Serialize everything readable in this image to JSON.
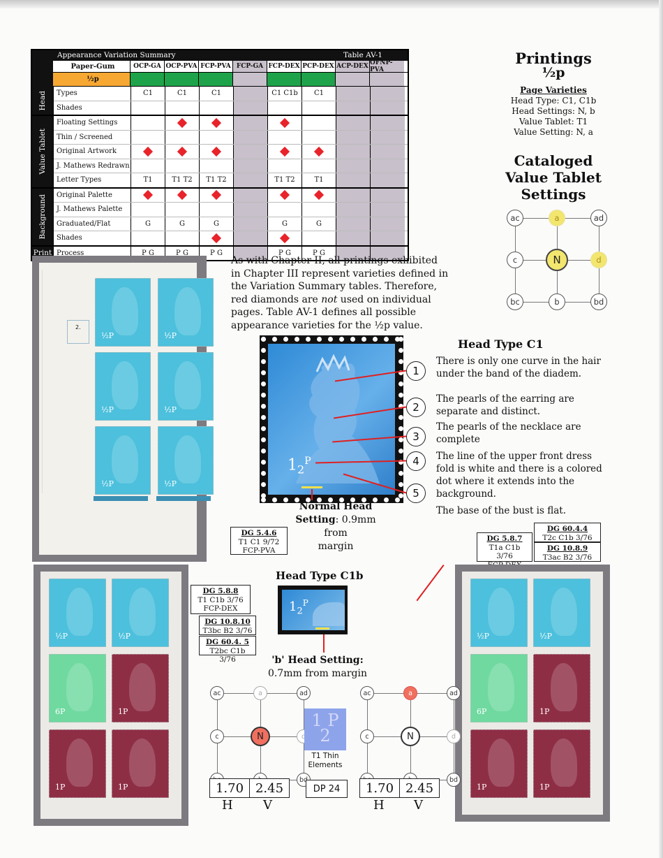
{
  "summary_table": {
    "title": "Appearance Variation Summary",
    "table_id": "Table AV-1",
    "paper_gum_label": "Paper-Gum",
    "columns": [
      "OCP-GA",
      "OCP-PVA",
      "FCP-PVA",
      "FCP-GA",
      "FCP-DEX",
      "PCP-DEX",
      "ACP-DEX",
      "OFNP-PVA"
    ],
    "value_label": "½p",
    "groups": [
      {
        "name": "Head",
        "rows": [
          {
            "label": "Types",
            "cells": [
              "C1",
              "C1",
              "C1",
              "",
              "C1 C1b",
              "C1",
              "",
              ""
            ]
          },
          {
            "label": "Shades",
            "cells": [
              "",
              "",
              "",
              "",
              "",
              "",
              "",
              ""
            ]
          }
        ]
      },
      {
        "name": "Value Tablet",
        "rows": [
          {
            "label": "Floating Settings",
            "cells": [
              "",
              "◆",
              "◆",
              "",
              "◆",
              "",
              "",
              ""
            ]
          },
          {
            "label": "Thin / Screened",
            "cells": [
              "",
              "",
              "",
              "",
              "",
              "",
              "",
              ""
            ]
          },
          {
            "label": "Original Artwork",
            "cells": [
              "◆",
              "◆",
              "◆",
              "",
              "◆",
              "◆",
              "",
              ""
            ]
          },
          {
            "label": "J. Mathews Redrawn",
            "cells": [
              "",
              "",
              "",
              "",
              "",
              "",
              "",
              ""
            ]
          },
          {
            "label": "Letter Types",
            "cells": [
              "T1",
              "T1 T2",
              "T1 T2",
              "",
              "T1 T2",
              "T1",
              "",
              ""
            ]
          }
        ]
      },
      {
        "name": "Background",
        "rows": [
          {
            "label": "Original Palette",
            "cells": [
              "◆",
              "◆",
              "◆",
              "",
              "◆",
              "◆",
              "",
              ""
            ]
          },
          {
            "label": "J. Mathews Palette",
            "cells": [
              "",
              "",
              "",
              "",
              "",
              "",
              "",
              ""
            ]
          },
          {
            "label": "Graduated/Flat",
            "cells": [
              "G",
              "G",
              "G",
              "",
              "G",
              "G",
              "",
              ""
            ]
          },
          {
            "label": "Shades",
            "cells": [
              "",
              "",
              "◆",
              "",
              "◆",
              "",
              "",
              ""
            ]
          }
        ]
      },
      {
        "name": "Print",
        "rows": [
          {
            "label": "Process",
            "cells": [
              "P G",
              "P G",
              "P G",
              "",
              "P G",
              "P G",
              "",
              ""
            ]
          }
        ]
      }
    ],
    "grey_columns": [
      3,
      6,
      7
    ],
    "green_columns": [
      0,
      1,
      2,
      4,
      5
    ]
  },
  "printings": {
    "title": "Printings",
    "value": "½p",
    "page_varieties_label": "Page Varieties",
    "lines": [
      "Head Type: C1, C1b",
      "Head Settings: N, b",
      "Value Tablet: T1",
      "Value Setting: N, a"
    ]
  },
  "cataloged": {
    "title_lines": [
      "Cataloged",
      "Value Tablet",
      "Settings"
    ],
    "nodes": {
      "ac": "ac",
      "a": "a",
      "ad": "ad",
      "c": "c",
      "N": "N",
      "d": "d",
      "bc": "bc",
      "b": "b",
      "bd": "bd"
    }
  },
  "intro_paragraph": {
    "part1": "As with Chapter II, all printings exhibited in Chapter III represent varieties defined in the Variation Summary tables. Therefore, red diamonds are ",
    "emph": "not",
    "part2": " used on individual pages. Table AV-1 defines all possible appearance varieties for the ½p value."
  },
  "block1": {
    "cylinder_number": "2.",
    "value_text": "½P"
  },
  "head_type_c1": {
    "title": "Head Type C1",
    "points": [
      {
        "n": "1",
        "text": "There is only one curve in the hair under the band of the diadem."
      },
      {
        "n": "2",
        "text": "The pearls of the earring are separate and distinct."
      },
      {
        "n": "3",
        "text": "The pearls of the necklace are complete"
      },
      {
        "n": "4",
        "text": "The line of the upper front dress fold is white and there is a colored dot where it extends into the background."
      },
      {
        "n": "5",
        "text": "The base of the bust is flat."
      }
    ]
  },
  "normal_head": {
    "bold": "Normal Head",
    "line2_bold": "Setting",
    "line2_rest": ": 0.9mm from",
    "line3": "margin"
  },
  "dg_boxes": {
    "dg546": {
      "id": "DG 5.4.6",
      "l1": "T1  C1  9/72",
      "l2": "FCP-PVA"
    },
    "dg588": {
      "id": "DG 5.8.8",
      "l1": "T1 C1b  3/76",
      "l2": "FCP-DEX"
    },
    "dg10810": {
      "id": "DG 10.8.10",
      "l1": "T3bc  B2  3/76"
    },
    "dg6045": {
      "id": "DG 60.4. 5",
      "l1": "T2bc  C1b  3/76"
    },
    "dg587": {
      "id": "DG 5.8.7",
      "l1": "T1a C1b  3/76",
      "l2": "FCP-DEX"
    },
    "dg6044": {
      "id": "DG 60.4.4",
      "l1": "T2c  C1b  3/76"
    },
    "dg1089": {
      "id": "DG 10.8.9",
      "l1": "T3ac  B2  3/76"
    }
  },
  "head_type_c1b": {
    "title": "Head Type C1b"
  },
  "b_head": {
    "line1": "'b' Head Setting:",
    "line2": "0.7mm from margin"
  },
  "t1_thin": {
    "glyph_top": "1",
    "glyph_p": "P",
    "glyph_bottom": "2",
    "caption1": "T1 Thin",
    "caption2": "Elements"
  },
  "measure_left": {
    "h": "1.70",
    "v": "2.45",
    "hl": "H",
    "vl": "V"
  },
  "measure_right": {
    "h": "1.70",
    "v": "2.45",
    "hl": "H",
    "vl": "V"
  },
  "dp": "DP 24",
  "colors": {
    "diamond": "#e8232a",
    "green": "#1fa34a",
    "orange": "#f7a833",
    "grey": "#c8c0cb",
    "turquoise": "#4cc0dc",
    "mint": "#6fd9a0",
    "maroon": "#8e2e45",
    "highlight_yellow": "#f3e66e",
    "highlight_red": "#f07060"
  }
}
